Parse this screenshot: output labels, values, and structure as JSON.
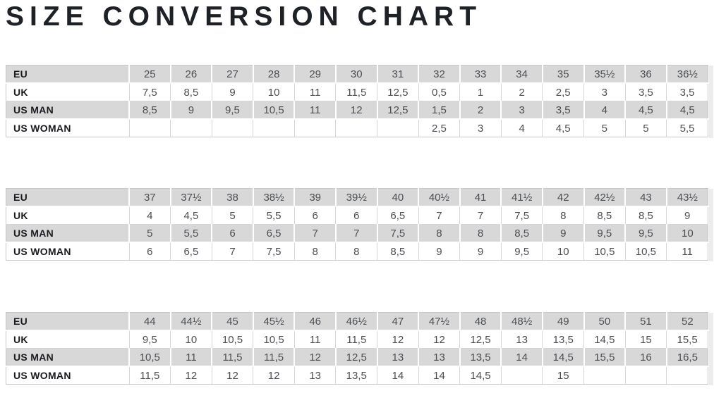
{
  "title": "SIZE CONVERSION CHART",
  "colors": {
    "page_bg": "#ffffff",
    "title_text": "#1e2126",
    "row_shaded": "#d8d8d8",
    "row_plain": "#ffffff",
    "separator_on_shaded": "#ffffff",
    "separator_on_plain": "#d6d6d6",
    "table_border": "#c8c8c8",
    "label_text": "#191b1f",
    "value_text": "#4b4e53",
    "overflow_strip": "#ececec"
  },
  "tables": [
    {
      "rows": [
        {
          "label": "EU",
          "values": [
            "25",
            "26",
            "27",
            "28",
            "29",
            "30",
            "31",
            "32",
            "33",
            "34",
            "35",
            "35½",
            "36",
            "36½"
          ]
        },
        {
          "label": "UK",
          "values": [
            "7,5",
            "8,5",
            "9",
            "10",
            "11",
            "11,5",
            "12,5",
            "0,5",
            "1",
            "2",
            "2,5",
            "3",
            "3,5",
            "3,5"
          ]
        },
        {
          "label": "US MAN",
          "values": [
            "8,5",
            "9",
            "9,5",
            "10,5",
            "11",
            "12",
            "12,5",
            "1,5",
            "2",
            "3",
            "3,5",
            "4",
            "4,5",
            "4,5"
          ]
        },
        {
          "label": "US WOMAN",
          "values": [
            "",
            "",
            "",
            "",
            "",
            "",
            "",
            "2,5",
            "3",
            "4",
            "4,5",
            "5",
            "5",
            "5,5"
          ]
        }
      ]
    },
    {
      "rows": [
        {
          "label": "EU",
          "values": [
            "37",
            "37½",
            "38",
            "38½",
            "39",
            "39½",
            "40",
            "40½",
            "41",
            "41½",
            "42",
            "42½",
            "43",
            "43½"
          ]
        },
        {
          "label": "UK",
          "values": [
            "4",
            "4,5",
            "5",
            "5,5",
            "6",
            "6",
            "6,5",
            "7",
            "7",
            "7,5",
            "8",
            "8,5",
            "8,5",
            "9"
          ]
        },
        {
          "label": "US MAN",
          "values": [
            "5",
            "5,5",
            "6",
            "6,5",
            "7",
            "7",
            "7,5",
            "8",
            "8",
            "8,5",
            "9",
            "9,5",
            "9,5",
            "10"
          ]
        },
        {
          "label": "US WOMAN",
          "values": [
            "6",
            "6,5",
            "7",
            "7,5",
            "8",
            "8",
            "8,5",
            "9",
            "9",
            "9,5",
            "10",
            "10,5",
            "10,5",
            "11"
          ]
        }
      ]
    },
    {
      "rows": [
        {
          "label": "EU",
          "values": [
            "44",
            "44½",
            "45",
            "45½",
            "46",
            "46½",
            "47",
            "47½",
            "48",
            "48½",
            "49",
            "50",
            "51",
            "52"
          ]
        },
        {
          "label": "UK",
          "values": [
            "9,5",
            "10",
            "10,5",
            "10,5",
            "11",
            "11,5",
            "12",
            "12",
            "12,5",
            "13",
            "13,5",
            "14,5",
            "15",
            "15,5"
          ]
        },
        {
          "label": "US MAN",
          "values": [
            "10,5",
            "11",
            "11,5",
            "11,5",
            "12",
            "12,5",
            "13",
            "13",
            "13,5",
            "14",
            "14,5",
            "15,5",
            "16",
            "16,5"
          ]
        },
        {
          "label": "US WOMAN",
          "values": [
            "11,5",
            "12",
            "12",
            "12",
            "13",
            "13,5",
            "14",
            "14",
            "14,5",
            "",
            "15",
            "",
            "",
            ""
          ]
        }
      ]
    }
  ]
}
